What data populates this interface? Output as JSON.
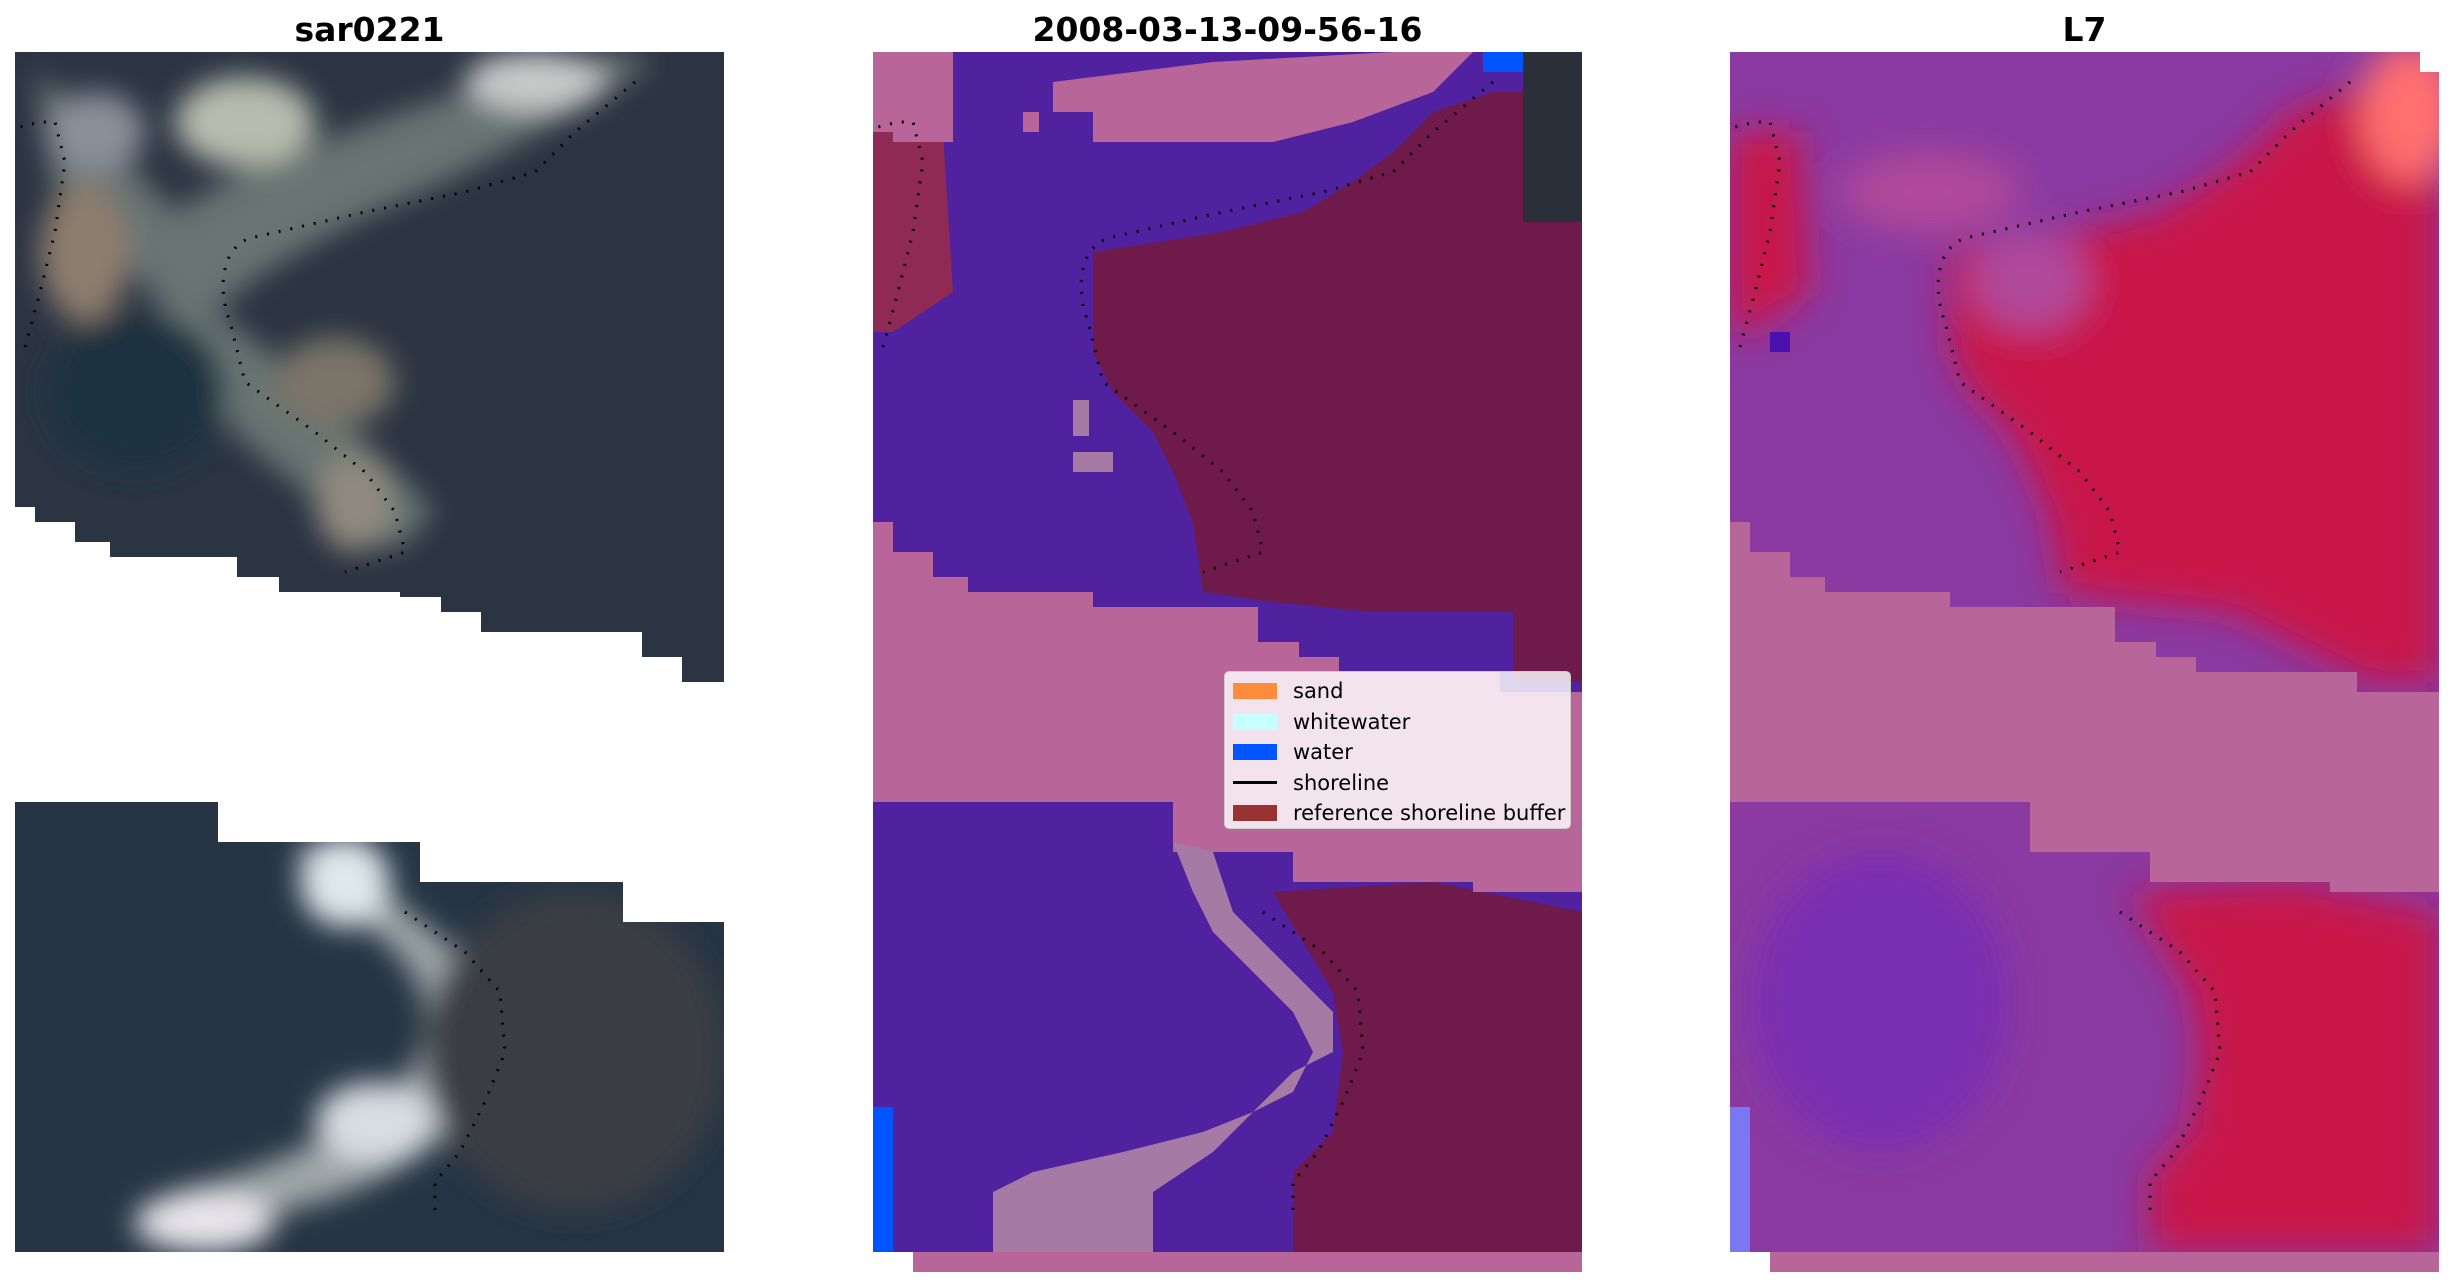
{
  "panels": [
    {
      "title": "sar0221",
      "type": "rgb_image"
    },
    {
      "title": "2008-03-13-09-56-16",
      "type": "classified_image"
    },
    {
      "title": "L7",
      "type": "mndwi_image"
    }
  ],
  "legend": {
    "items": [
      {
        "label": "sand",
        "kind": "patch",
        "color": "#ff8c3a"
      },
      {
        "label": "whitewater",
        "kind": "patch",
        "color": "#c8ffff"
      },
      {
        "label": "water",
        "kind": "patch",
        "color": "#0055ff"
      },
      {
        "label": "shoreline",
        "kind": "line",
        "color": "#000000"
      },
      {
        "label": "reference shoreline buffer",
        "kind": "patch",
        "color": "#993333"
      }
    ]
  },
  "colors": {
    "background": "#ffffff",
    "buffer_overlay": "#b8669a",
    "water_class": "#5022a0",
    "land_class": "#6e1a4a",
    "shoreline": "#000000"
  }
}
